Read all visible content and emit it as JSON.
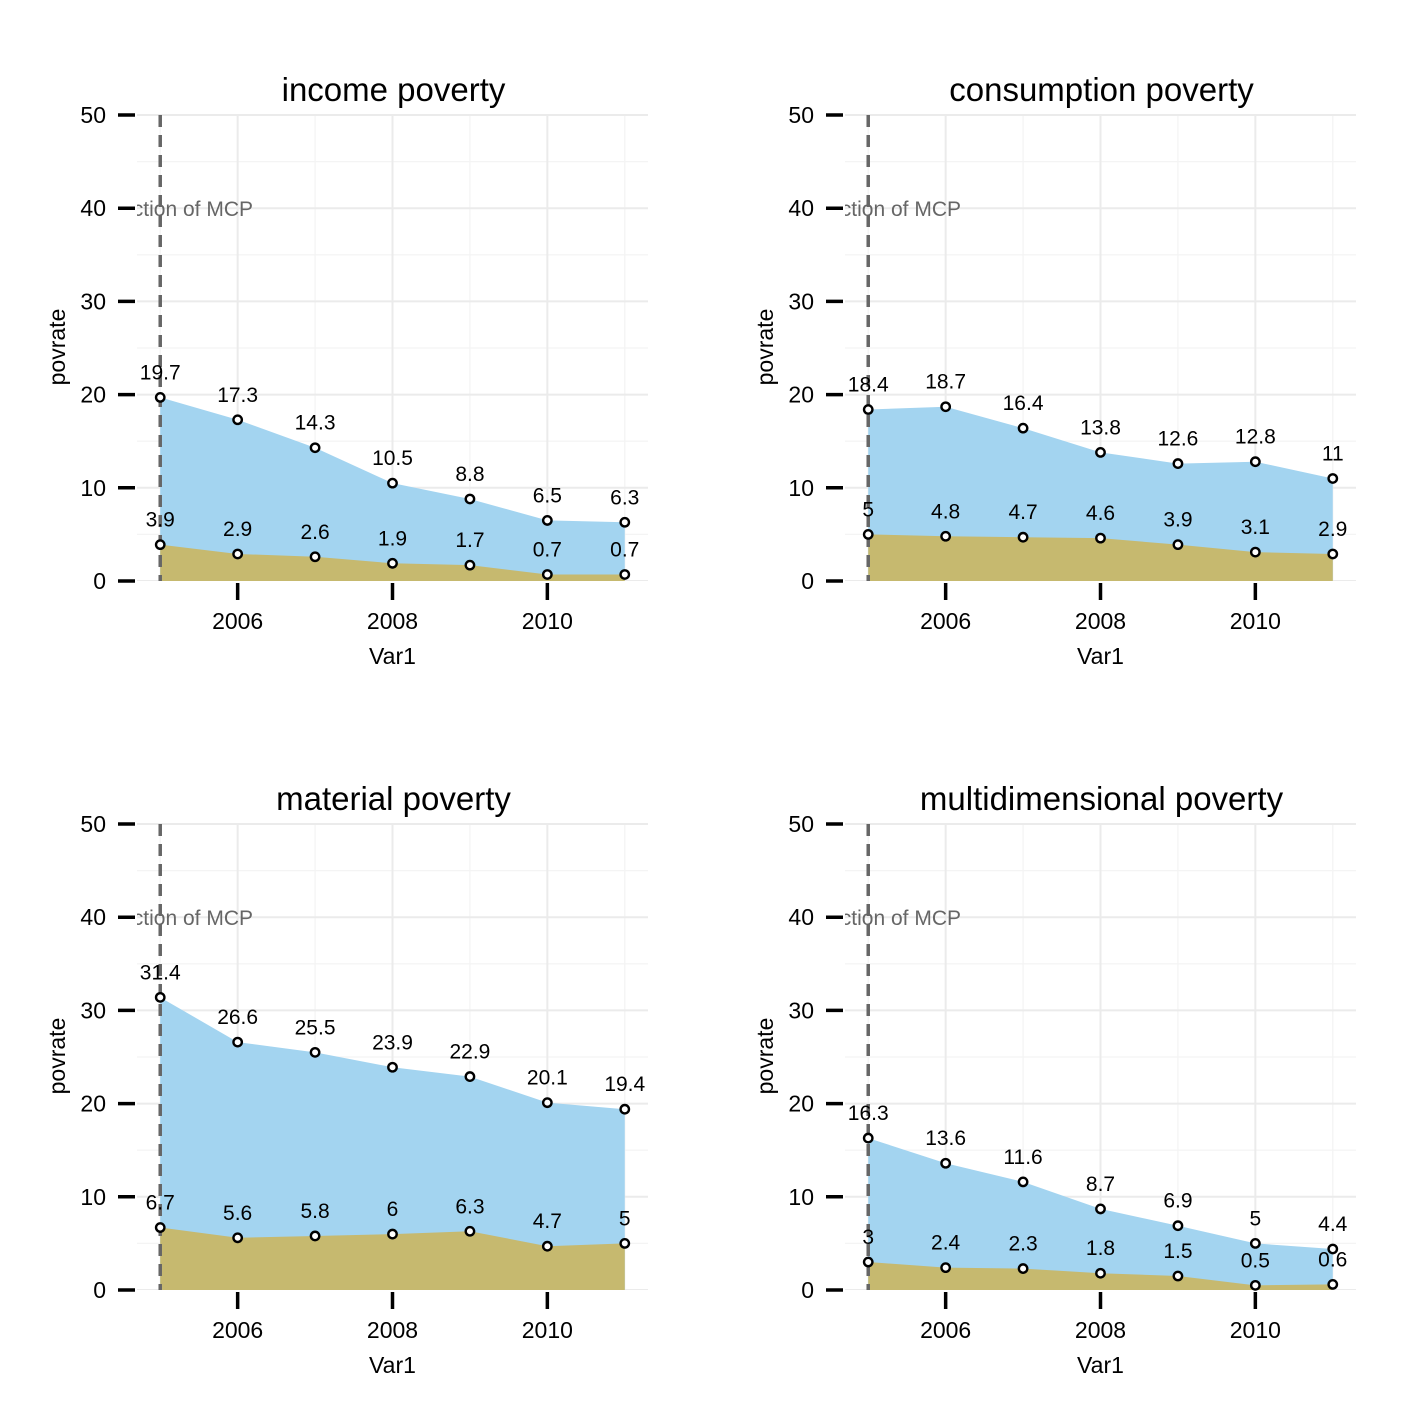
{
  "colors": {
    "upper_area": "#a3d4f0",
    "lower_area": "#c6b96f",
    "intro_line": "#666666",
    "annotation_text": "#666666"
  },
  "chart_data": [
    {
      "type": "area",
      "title": "income poverty",
      "xlabel": "Var1",
      "ylabel": "povrate",
      "x": [
        2005,
        2006,
        2007,
        2008,
        2009,
        2010,
        2011
      ],
      "series": [
        {
          "values": [
            19.7,
            17.3,
            14.3,
            10.5,
            8.8,
            6.5,
            6.3
          ],
          "labels": [
            "19.7",
            "17.3",
            "14.3",
            "10.5",
            "8.8",
            "6.5",
            "6.3"
          ]
        },
        {
          "values": [
            3.9,
            2.9,
            2.6,
            1.9,
            1.7,
            0.7,
            0.7
          ],
          "labels": [
            "3.9",
            "2.9",
            "2.6",
            "1.9",
            "1.7",
            "0.7",
            "0.7"
          ]
        }
      ],
      "xticks": [
        2006,
        2008,
        2010
      ],
      "xtick_labels": [
        "2006",
        "2008",
        "2010"
      ],
      "yticks": [
        0,
        10,
        20,
        30,
        40,
        50
      ],
      "ytick_labels": [
        "0",
        "10",
        "20",
        "30",
        "40",
        "50"
      ],
      "xlim": [
        2004.7,
        2011.3
      ],
      "ylim": [
        0,
        50
      ],
      "annotation": {
        "text": "Introduction of MCP",
        "x": 2005,
        "y": 40
      },
      "vline_x": 2005,
      "grid": true
    },
    {
      "type": "area",
      "title": "consumption poverty",
      "xlabel": "Var1",
      "ylabel": "povrate",
      "x": [
        2005,
        2006,
        2007,
        2008,
        2009,
        2010,
        2011
      ],
      "series": [
        {
          "values": [
            18.4,
            18.7,
            16.4,
            13.8,
            12.6,
            12.8,
            11
          ],
          "labels": [
            "18.4",
            "18.7",
            "16.4",
            "13.8",
            "12.6",
            "12.8",
            "11"
          ]
        },
        {
          "values": [
            5,
            4.8,
            4.7,
            4.6,
            3.9,
            3.1,
            2.9
          ],
          "labels": [
            "5",
            "4.8",
            "4.7",
            "4.6",
            "3.9",
            "3.1",
            "2.9"
          ]
        }
      ],
      "xticks": [
        2006,
        2008,
        2010
      ],
      "xtick_labels": [
        "2006",
        "2008",
        "2010"
      ],
      "yticks": [
        0,
        10,
        20,
        30,
        40,
        50
      ],
      "ytick_labels": [
        "0",
        "10",
        "20",
        "30",
        "40",
        "50"
      ],
      "xlim": [
        2004.7,
        2011.3
      ],
      "ylim": [
        0,
        50
      ],
      "annotation": {
        "text": "Introduction of MCP",
        "x": 2005,
        "y": 40
      },
      "vline_x": 2005,
      "grid": true
    },
    {
      "type": "area",
      "title": "material poverty",
      "xlabel": "Var1",
      "ylabel": "povrate",
      "x": [
        2005,
        2006,
        2007,
        2008,
        2009,
        2010,
        2011
      ],
      "series": [
        {
          "values": [
            31.4,
            26.6,
            25.5,
            23.9,
            22.9,
            20.1,
            19.4
          ],
          "labels": [
            "31.4",
            "26.6",
            "25.5",
            "23.9",
            "22.9",
            "20.1",
            "19.4"
          ]
        },
        {
          "values": [
            6.7,
            5.6,
            5.8,
            6,
            6.3,
            4.7,
            5
          ],
          "labels": [
            "6.7",
            "5.6",
            "5.8",
            "6",
            "6.3",
            "4.7",
            "5"
          ]
        }
      ],
      "xticks": [
        2006,
        2008,
        2010
      ],
      "xtick_labels": [
        "2006",
        "2008",
        "2010"
      ],
      "yticks": [
        0,
        10,
        20,
        30,
        40,
        50
      ],
      "ytick_labels": [
        "0",
        "10",
        "20",
        "30",
        "40",
        "50"
      ],
      "xlim": [
        2004.7,
        2011.3
      ],
      "ylim": [
        0,
        50
      ],
      "annotation": {
        "text": "Introduction of MCP",
        "x": 2005,
        "y": 40
      },
      "vline_x": 2005,
      "grid": true
    },
    {
      "type": "area",
      "title": "multidimensional poverty",
      "xlabel": "Var1",
      "ylabel": "povrate",
      "x": [
        2005,
        2006,
        2007,
        2008,
        2009,
        2010,
        2011
      ],
      "series": [
        {
          "values": [
            16.3,
            13.6,
            11.6,
            8.7,
            6.9,
            5,
            4.4
          ],
          "labels": [
            "16.3",
            "13.6",
            "11.6",
            "8.7",
            "6.9",
            "5",
            "4.4"
          ]
        },
        {
          "values": [
            3,
            2.4,
            2.3,
            1.8,
            1.5,
            0.5,
            0.6
          ],
          "labels": [
            "3",
            "2.4",
            "2.3",
            "1.8",
            "1.5",
            "0.5",
            "0.6"
          ]
        }
      ],
      "xticks": [
        2006,
        2008,
        2010
      ],
      "xtick_labels": [
        "2006",
        "2008",
        "2010"
      ],
      "yticks": [
        0,
        10,
        20,
        30,
        40,
        50
      ],
      "ytick_labels": [
        "0",
        "10",
        "20",
        "30",
        "40",
        "50"
      ],
      "xlim": [
        2004.7,
        2011.3
      ],
      "ylim": [
        0,
        50
      ],
      "annotation": {
        "text": "Introduction of MCP",
        "x": 2005,
        "y": 40
      },
      "vline_x": 2005,
      "grid": true
    }
  ]
}
